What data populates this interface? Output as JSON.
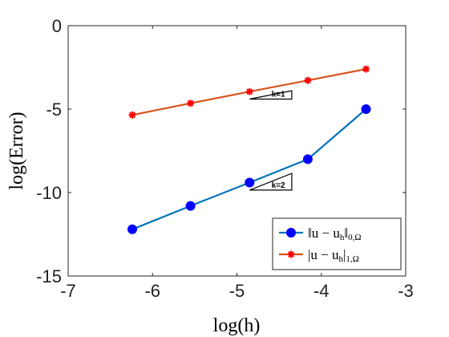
{
  "chart_data": {
    "type": "line",
    "xlabel": "log(h)",
    "ylabel": "log(Error)",
    "xlim": [
      -7,
      -3
    ],
    "ylim": [
      -15,
      0
    ],
    "xticks": [
      -7,
      -6,
      -5,
      -4,
      -3
    ],
    "yticks": [
      0,
      -5,
      -10,
      -15
    ],
    "xtick_labels": [
      "-7",
      "-6",
      "-5",
      "-4",
      "-3"
    ],
    "ytick_labels": [
      "0",
      "-5",
      "-10",
      "-15"
    ],
    "grid": false,
    "legend_position": "bottom-right",
    "series": [
      {
        "name": "||u - u_h||_{0,Ω}",
        "legend_main": "‖u − u",
        "legend_sub": "h",
        "legend_close": "‖",
        "legend_tail": "0,Ω",
        "color": "#0072BD",
        "marker": "circle",
        "marker_color": "#0000FF",
        "x": [
          -6.24,
          -5.55,
          -4.85,
          -4.16,
          -3.47
        ],
        "y": [
          -12.2,
          -10.8,
          -9.4,
          -8.0,
          -5.0
        ]
      },
      {
        "name": "|u - u_h|_{1,Ω}",
        "legend_main": "|u − u",
        "legend_sub": "h",
        "legend_close": "|",
        "legend_tail": "1,Ω",
        "color": "#D95319",
        "marker": "asterisk",
        "marker_color": "#FF0000",
        "x": [
          -6.24,
          -5.55,
          -4.85,
          -4.16,
          -3.47
        ],
        "y": [
          -5.35,
          -4.65,
          -3.95,
          -3.28,
          -2.6
        ]
      }
    ],
    "annotations": [
      {
        "label": "k=1",
        "slope": 1,
        "x0": -4.85,
        "x1": -4.35,
        "y0": -4.4
      },
      {
        "label": "k=2",
        "slope": 2,
        "x0": -4.85,
        "x1": -4.35,
        "y0": -9.85
      }
    ]
  }
}
